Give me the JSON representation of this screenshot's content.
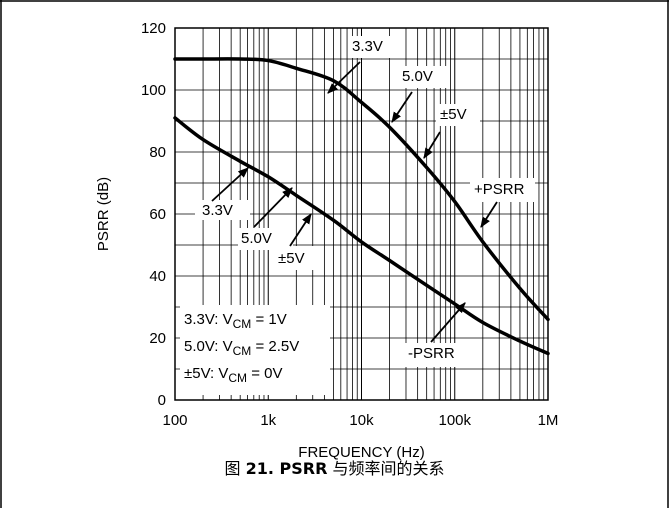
{
  "chart_data": {
    "type": "line",
    "xscale": "log",
    "xlim": [
      100,
      1000000
    ],
    "ylim": [
      0,
      120
    ],
    "grid": true,
    "xlabel": "FREQUENCY (Hz)",
    "ylabel": "PSRR (dB)",
    "x_ticks": [
      {
        "value": 100,
        "label": "100"
      },
      {
        "value": 1000,
        "label": "1k"
      },
      {
        "value": 10000,
        "label": "10k"
      },
      {
        "value": 100000,
        "label": "100k"
      },
      {
        "value": 1000000,
        "label": "1M"
      }
    ],
    "y_ticks": [
      {
        "value": 0,
        "label": "0"
      },
      {
        "value": 20,
        "label": "20"
      },
      {
        "value": 40,
        "label": "40"
      },
      {
        "value": 60,
        "label": "60"
      },
      {
        "value": 80,
        "label": "80"
      },
      {
        "value": 100,
        "label": "100"
      },
      {
        "value": 120,
        "label": "120"
      }
    ],
    "series": [
      {
        "name": "+PSRR",
        "x": [
          100,
          200,
          500,
          1000,
          2000,
          5000,
          10000,
          20000,
          50000,
          100000,
          200000,
          500000,
          1000000
        ],
        "y": [
          110,
          110,
          110,
          109.5,
          107,
          103,
          96,
          88,
          75,
          64,
          51,
          36,
          26
        ]
      },
      {
        "name": "-PSRR",
        "x": [
          100,
          200,
          500,
          1000,
          2000,
          5000,
          10000,
          20000,
          50000,
          100000,
          200000,
          500000,
          1000000
        ],
        "y": [
          91,
          84,
          77,
          72,
          66,
          58,
          51,
          45,
          37,
          31,
          25,
          19,
          15
        ]
      }
    ],
    "annotations": [
      {
        "text": "3.3V",
        "x": 30000,
        "y": 111
      },
      {
        "text": "5.0V",
        "x": 70000,
        "y": 101
      },
      {
        "text": "±5V",
        "x": 160000,
        "y": 90
      },
      {
        "text": "+PSRR",
        "x": 500000,
        "y": 66
      },
      {
        "text": "3.3V",
        "x": 500,
        "y": 60
      },
      {
        "text": "5.0V",
        "x": 1500,
        "y": 50
      },
      {
        "text": "±5V",
        "x": 4000,
        "y": 44
      },
      {
        "text": "-PSRR",
        "x": 200000,
        "y": 14
      }
    ],
    "legend_notes": [
      {
        "label": "3.3V: V",
        "sub": "CM",
        "tail": " = 1V"
      },
      {
        "label": "5.0V: V",
        "sub": "CM",
        "tail": " = 2.5V"
      },
      {
        "label": "±5V: V",
        "sub": "CM",
        "tail": " = 0V"
      }
    ]
  },
  "caption": {
    "prefix": "图 ",
    "bold": "21. PSRR",
    "suffix": " 与频率间的关系"
  }
}
